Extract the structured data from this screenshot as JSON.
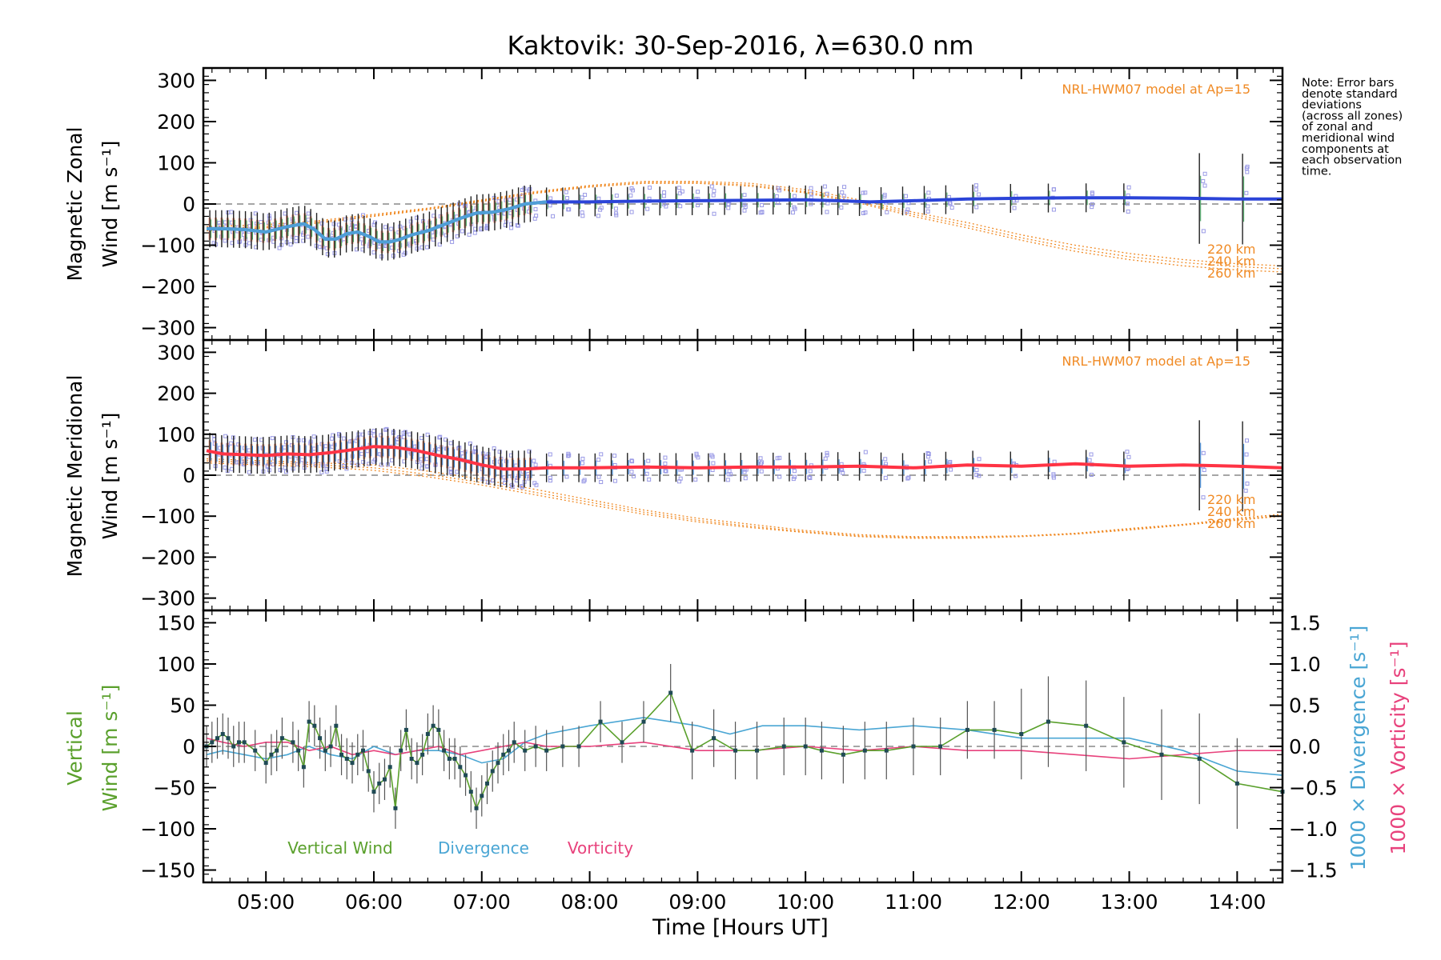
{
  "colors": {
    "zonal": "#2b44d8",
    "zonal_light": "#4f9fd6",
    "meridional": "#ff3344",
    "model": "#f08a24",
    "model_pink": "#f5a58a",
    "vertical": "#5aa02c",
    "divergence": "#4aa6d4",
    "vorticity": "#e8427c",
    "raw": "#9a9ae6",
    "error_bar": "#555555",
    "dashed": "#888888"
  },
  "chart_data": [
    {
      "type": "line",
      "title": "Kaktovik: 30-Sep-2016, λ=630.0 nm",
      "ylabel_line1": "Magnetic Zonal",
      "ylabel_line2": "Wind [m s⁻¹]",
      "ylim": [
        -330,
        330
      ],
      "yticks": [
        -300,
        -200,
        -100,
        0,
        100,
        200,
        300
      ],
      "xlim": [
        4.42,
        14.42
      ],
      "model_label": "NRL-HWM07 model at Ap=15",
      "altitude_labels": [
        "220 km",
        "240 km",
        "260 km"
      ],
      "series": [
        {
          "x": [
            4.45,
            4.6,
            4.8,
            5.0,
            5.2,
            5.35,
            5.45,
            5.55,
            5.65,
            5.75,
            5.85,
            5.95,
            6.05,
            6.15,
            6.25,
            6.35,
            6.5,
            6.65,
            6.8,
            6.95,
            7.1,
            7.25,
            7.4,
            7.6,
            7.8,
            8.0,
            8.5,
            9.0,
            9.5,
            10.0,
            10.3,
            10.6,
            11.0,
            11.5,
            12.0,
            12.5,
            13.0,
            13.5,
            14.0,
            14.42
          ],
          "y": [
            -60,
            -60,
            -62,
            -68,
            -55,
            -48,
            -62,
            -85,
            -85,
            -72,
            -68,
            -78,
            -92,
            -92,
            -85,
            -75,
            -65,
            -50,
            -35,
            -22,
            -20,
            -12,
            0,
            5,
            5,
            5,
            7,
            8,
            9,
            10,
            8,
            5,
            8,
            12,
            14,
            15,
            15,
            14,
            12,
            12
          ]
        }
      ],
      "model_series": [
        {
          "name": "220 km",
          "x": [
            4.45,
            5.0,
            5.5,
            6.0,
            6.5,
            7.0,
            7.5,
            8.0,
            8.5,
            9.0,
            9.5,
            10.0,
            10.5,
            11.0,
            11.5,
            12.0,
            12.5,
            13.0,
            13.5,
            14.0,
            14.42
          ],
          "y": [
            -55,
            -50,
            -40,
            -25,
            -10,
            10,
            30,
            45,
            55,
            55,
            50,
            35,
            10,
            -20,
            -45,
            -75,
            -100,
            -120,
            -135,
            -145,
            -150
          ]
        },
        {
          "name": "240 km",
          "x": [
            4.45,
            5.0,
            5.5,
            6.0,
            6.5,
            7.0,
            7.5,
            8.0,
            8.5,
            9.0,
            9.5,
            10.0,
            10.5,
            11.0,
            11.5,
            12.0,
            12.5,
            13.0,
            13.5,
            14.0,
            14.42
          ],
          "y": [
            -60,
            -55,
            -43,
            -28,
            -12,
            8,
            28,
            43,
            52,
            52,
            46,
            30,
            5,
            -25,
            -52,
            -82,
            -108,
            -128,
            -142,
            -152,
            -157
          ]
        },
        {
          "name": "260 km",
          "x": [
            4.45,
            5.0,
            5.5,
            6.0,
            6.5,
            7.0,
            7.5,
            8.0,
            8.5,
            9.0,
            9.5,
            10.0,
            10.5,
            11.0,
            11.5,
            12.0,
            12.5,
            13.0,
            13.5,
            14.0,
            14.42
          ],
          "y": [
            -65,
            -58,
            -46,
            -30,
            -14,
            6,
            26,
            41,
            50,
            50,
            43,
            27,
            2,
            -30,
            -58,
            -88,
            -115,
            -135,
            -150,
            -160,
            -165
          ]
        }
      ]
    },
    {
      "type": "line",
      "ylabel_line1": "Magnetic Meridional",
      "ylabel_line2": "Wind [m s⁻¹]",
      "ylim": [
        -330,
        330
      ],
      "yticks": [
        -300,
        -200,
        -100,
        0,
        100,
        200,
        300
      ],
      "xlim": [
        4.42,
        14.42
      ],
      "model_label": "NRL-HWM07 model at Ap=15",
      "altitude_labels": [
        "220 km",
        "240 km",
        "260 km"
      ],
      "series": [
        {
          "x": [
            4.45,
            4.6,
            4.8,
            5.0,
            5.2,
            5.4,
            5.6,
            5.8,
            6.0,
            6.2,
            6.4,
            6.6,
            6.8,
            7.0,
            7.2,
            7.4,
            7.6,
            8.0,
            8.5,
            9.0,
            9.5,
            10.0,
            10.5,
            11.0,
            11.5,
            12.0,
            12.5,
            13.0,
            13.5,
            14.0,
            14.42
          ],
          "y": [
            60,
            52,
            50,
            48,
            52,
            50,
            55,
            62,
            70,
            68,
            60,
            48,
            38,
            25,
            15,
            15,
            18,
            18,
            20,
            18,
            20,
            20,
            22,
            18,
            25,
            22,
            28,
            22,
            25,
            22,
            18
          ]
        }
      ],
      "model_series": [
        {
          "name": "220 km",
          "x": [
            4.45,
            5.0,
            5.5,
            6.0,
            6.5,
            7.0,
            7.5,
            8.0,
            8.5,
            9.0,
            9.5,
            10.0,
            10.5,
            11.0,
            11.5,
            12.0,
            12.5,
            13.0,
            13.5,
            14.0,
            14.42
          ],
          "y": [
            40,
            35,
            30,
            25,
            10,
            -10,
            -35,
            -60,
            -85,
            -105,
            -120,
            -135,
            -145,
            -150,
            -150,
            -148,
            -142,
            -130,
            -120,
            -105,
            -95
          ]
        },
        {
          "name": "240 km",
          "x": [
            4.45,
            5.0,
            5.5,
            6.0,
            6.5,
            7.0,
            7.5,
            8.0,
            8.5,
            9.0,
            9.5,
            10.0,
            10.5,
            11.0,
            11.5,
            12.0,
            12.5,
            13.0,
            13.5,
            14.0,
            14.42
          ],
          "y": [
            35,
            30,
            25,
            18,
            2,
            -18,
            -42,
            -66,
            -90,
            -110,
            -125,
            -138,
            -148,
            -152,
            -152,
            -149,
            -142,
            -132,
            -120,
            -108,
            -98
          ]
        },
        {
          "name": "260 km",
          "x": [
            4.45,
            5.0,
            5.5,
            6.0,
            6.5,
            7.0,
            7.5,
            8.0,
            8.5,
            9.0,
            9.5,
            10.0,
            10.5,
            11.0,
            11.5,
            12.0,
            12.5,
            13.0,
            13.5,
            14.0,
            14.42
          ],
          "y": [
            30,
            25,
            20,
            12,
            -4,
            -24,
            -48,
            -72,
            -95,
            -114,
            -128,
            -140,
            -150,
            -154,
            -154,
            -150,
            -144,
            -134,
            -122,
            -110,
            -100
          ]
        }
      ]
    },
    {
      "type": "line",
      "ylabel_left_line1": "Vertical",
      "ylabel_left_line2": "Wind [m s⁻¹]",
      "ylabel_right_1": "1000 × Divergence [s⁻¹]",
      "ylabel_right_2": "1000 × Vorticity [s⁻¹]",
      "ylim": [
        -165,
        165
      ],
      "yticks": [
        -150,
        -100,
        -50,
        0,
        50,
        100,
        150
      ],
      "ylim_right": [
        -1.65,
        1.65
      ],
      "yticks_right": [
        -1.5,
        -1.0,
        -0.5,
        0.0,
        0.5,
        1.0,
        1.5
      ],
      "yticklabels_right": [
        "−1.5",
        "−1.0",
        "−0.5",
        "0.0",
        "0.5",
        "1.0",
        "1.5"
      ],
      "xlim": [
        4.42,
        14.42
      ],
      "xlabel": "Time [Hours UT]",
      "xticks": [
        5,
        6,
        7,
        8,
        9,
        10,
        11,
        12,
        13,
        14
      ],
      "xticklabels": [
        "05:00",
        "06:00",
        "07:00",
        "08:00",
        "09:00",
        "10:00",
        "11:00",
        "12:00",
        "13:00",
        "14:00"
      ],
      "legend": [
        "Vertical Wind",
        "Divergence",
        "Vorticity"
      ],
      "series": [
        {
          "name": "Vertical Wind",
          "x": [
            4.45,
            4.5,
            4.55,
            4.6,
            4.65,
            4.7,
            4.75,
            4.8,
            4.9,
            5.0,
            5.05,
            5.1,
            5.15,
            5.25,
            5.3,
            5.35,
            5.4,
            5.45,
            5.5,
            5.55,
            5.6,
            5.65,
            5.7,
            5.75,
            5.8,
            5.85,
            5.9,
            5.95,
            6.0,
            6.05,
            6.1,
            6.15,
            6.2,
            6.25,
            6.3,
            6.35,
            6.4,
            6.45,
            6.5,
            6.55,
            6.6,
            6.65,
            6.7,
            6.75,
            6.8,
            6.85,
            6.9,
            6.95,
            7.0,
            7.05,
            7.1,
            7.15,
            7.2,
            7.25,
            7.3,
            7.4,
            7.5,
            7.6,
            7.75,
            7.9,
            8.1,
            8.3,
            8.5,
            8.75,
            8.95,
            9.15,
            9.35,
            9.55,
            9.8,
            10.0,
            10.15,
            10.35,
            10.55,
            10.75,
            11.0,
            11.25,
            11.5,
            11.75,
            12.0,
            12.25,
            12.6,
            12.95,
            13.3,
            13.65,
            14.0,
            14.42
          ],
          "y": [
            0,
            5,
            10,
            15,
            10,
            0,
            5,
            5,
            -5,
            -20,
            -10,
            -5,
            10,
            5,
            -5,
            -25,
            30,
            25,
            10,
            -5,
            0,
            25,
            -10,
            -15,
            -20,
            -10,
            -5,
            -30,
            -55,
            -45,
            -40,
            -25,
            -75,
            -5,
            20,
            -15,
            -20,
            -10,
            15,
            25,
            20,
            -5,
            -15,
            -15,
            -25,
            -35,
            -55,
            -75,
            -60,
            -45,
            -30,
            -20,
            -10,
            -5,
            5,
            -5,
            0,
            -5,
            0,
            0,
            30,
            5,
            30,
            65,
            -5,
            10,
            -5,
            -5,
            0,
            0,
            -5,
            -10,
            -5,
            -5,
            0,
            0,
            20,
            20,
            15,
            30,
            25,
            5,
            -10,
            -15,
            -45,
            -55
          ]
        },
        {
          "name": "Divergence",
          "x": [
            4.45,
            4.6,
            4.8,
            5.0,
            5.2,
            5.4,
            5.6,
            5.8,
            6.0,
            6.2,
            6.4,
            6.6,
            6.8,
            7.0,
            7.2,
            7.4,
            7.6,
            8.0,
            8.5,
            9.0,
            9.3,
            9.6,
            10.0,
            10.5,
            11.0,
            11.5,
            12.0,
            12.5,
            13.0,
            13.5,
            14.0,
            14.42
          ],
          "y": [
            -0.1,
            -0.05,
            -0.1,
            -0.15,
            -0.1,
            0.0,
            -0.1,
            -0.15,
            0.0,
            -0.1,
            -0.05,
            -0.05,
            -0.1,
            -0.2,
            -0.15,
            0.05,
            0.15,
            0.25,
            0.35,
            0.25,
            0.15,
            0.25,
            0.25,
            0.2,
            0.25,
            0.2,
            0.1,
            0.1,
            0.1,
            -0.05,
            -0.3,
            -0.35
          ]
        },
        {
          "name": "Vorticity",
          "x": [
            4.45,
            4.6,
            4.8,
            5.0,
            5.2,
            5.4,
            5.6,
            5.8,
            6.0,
            6.2,
            6.4,
            6.6,
            6.8,
            7.0,
            7.2,
            7.4,
            7.6,
            8.0,
            8.5,
            9.0,
            9.5,
            10.0,
            10.5,
            11.0,
            11.5,
            12.0,
            12.5,
            13.0,
            13.5,
            14.0,
            14.42
          ],
          "y": [
            0.1,
            0.05,
            0.0,
            0.05,
            0.05,
            -0.05,
            0.0,
            -0.1,
            -0.05,
            -0.1,
            -0.05,
            0.0,
            -0.1,
            -0.05,
            0.0,
            0.05,
            0.0,
            0.0,
            0.05,
            -0.05,
            -0.05,
            0.0,
            -0.05,
            0.0,
            -0.05,
            -0.05,
            -0.1,
            -0.15,
            -0.1,
            -0.05,
            -0.05
          ]
        }
      ]
    }
  ],
  "note_lines": [
    "Note: Error bars",
    "denote standard",
    "deviations",
    "(across all zones)",
    "of zonal and",
    "meridional wind",
    "components at",
    "each observation",
    "time."
  ]
}
